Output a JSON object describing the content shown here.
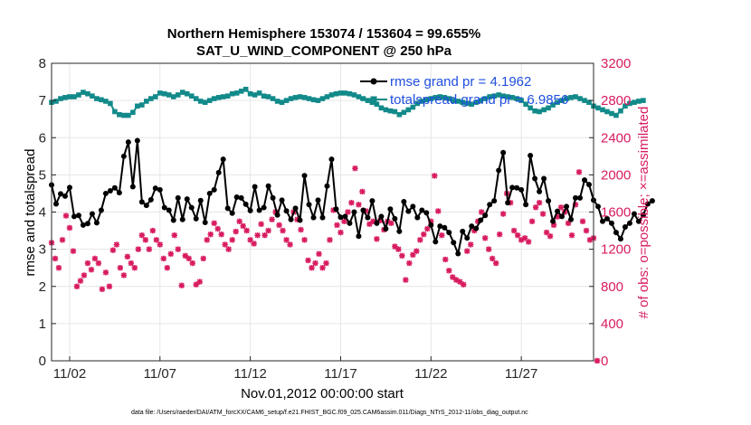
{
  "chart_data": {
    "type": "line",
    "title": "Northern Hemisphere 153074 / 153604 = 99.655%",
    "subtitle": "SAT_U_WIND_COMPONENT @ 250 hPa",
    "xlabel": "Nov.01,2012 00:00:00 start",
    "ylabel_left": "rmse and totalspread",
    "ylabel_right": "# of obs: o=possible; ×=assimilated",
    "footnote": "data file: /Users/raeder/DAI/ATM_forcXX/CAM6_setup/f.e21.FHIST_BGC.f09_025.CAM6assim.011/Diags_NTrS_2012-11/obs_diag_output.nc",
    "x_tick_labels": [
      "11/02",
      "11/07",
      "11/12",
      "11/17",
      "11/22",
      "11/27"
    ],
    "x_tick_days": [
      2,
      7,
      12,
      17,
      22,
      27
    ],
    "xlim_days": [
      1.0,
      31.0
    ],
    "y_left_ticks": [
      "0",
      "1",
      "2",
      "3",
      "4",
      "5",
      "6",
      "7",
      "8"
    ],
    "ylim_left": [
      0,
      8
    ],
    "y_right_ticks": [
      "0",
      "400",
      "800",
      "1200",
      "1600",
      "2000",
      "2400",
      "2800",
      "3200"
    ],
    "ylim_right": [
      0,
      3200
    ],
    "grid": true,
    "legend_placement": "top-right",
    "colors": {
      "rmse": "#000000",
      "totalspread": "#138a8a",
      "obs": "#d81b60",
      "right_axis": "#d81b60",
      "legend_text": "#1f4fdf"
    },
    "series": [
      {
        "name": "rmse grand pr = 4.1962",
        "axis": "left",
        "x_start_day": 1.0,
        "x_step_days": 0.25,
        "values": [
          4.73,
          4.22,
          4.49,
          4.43,
          4.66,
          3.88,
          3.91,
          3.65,
          3.69,
          3.95,
          3.71,
          4.05,
          4.5,
          4.57,
          4.65,
          4.52,
          5.5,
          5.88,
          4.68,
          5.92,
          4.27,
          4.18,
          4.33,
          4.64,
          4.6,
          4.12,
          4.05,
          3.78,
          4.38,
          3.8,
          4.35,
          4.12,
          3.82,
          4.31,
          3.72,
          4.5,
          4.6,
          5.06,
          5.42,
          4.1,
          3.97,
          4.4,
          4.38,
          4.21,
          4.04,
          4.68,
          4.05,
          4.12,
          4.7,
          4.38,
          3.92,
          4.32,
          4.03,
          3.8,
          4.1,
          3.78,
          4.98,
          4.2,
          3.85,
          4.32,
          3.85,
          4.7,
          5.42,
          4.08,
          3.86,
          3.88,
          3.7,
          4.0,
          3.35,
          4.05,
          3.85,
          4.3,
          3.7,
          3.88,
          3.55,
          4.08,
          3.82,
          3.48,
          4.28,
          4.02,
          4.15,
          3.85,
          4.05,
          3.98,
          3.65,
          3.2,
          3.62,
          3.58,
          3.45,
          3.18,
          2.88,
          3.48,
          3.3,
          3.62,
          3.56,
          3.78,
          3.91,
          4.2,
          4.3,
          5.12,
          5.6,
          4.25,
          4.66,
          4.65,
          4.6,
          4.2,
          5.52,
          4.9,
          4.55,
          4.9,
          4.3,
          3.75,
          4.02,
          3.88,
          4.15,
          3.8,
          4.38,
          4.38,
          4.86,
          4.74,
          4.32,
          4.15,
          3.75,
          3.82,
          3.7,
          3.45,
          3.28,
          3.6,
          3.7,
          3.95,
          3.75,
          3.92,
          4.22,
          4.3
        ]
      },
      {
        "name": "totalspread grand pr = 6.9856",
        "axis": "left",
        "x_start_day": 1.0,
        "x_step_days": 0.25,
        "values": [
          6.95,
          6.98,
          7.05,
          7.08,
          7.1,
          7.1,
          7.15,
          7.22,
          7.18,
          7.12,
          7.05,
          7.02,
          6.98,
          6.92,
          6.7,
          6.62,
          6.6,
          6.6,
          6.68,
          6.85,
          6.88,
          6.98,
          7.05,
          7.1,
          7.2,
          7.18,
          7.15,
          7.1,
          7.15,
          7.22,
          7.18,
          7.12,
          7.05,
          6.98,
          6.95,
          7.0,
          7.05,
          7.08,
          7.1,
          7.12,
          7.18,
          7.2,
          7.25,
          7.3,
          7.18,
          7.15,
          7.2,
          7.12,
          7.1,
          7.05,
          6.98,
          6.95,
          7.0,
          7.05,
          7.08,
          7.1,
          7.08,
          7.05,
          7.02,
          7.0,
          7.05,
          7.1,
          7.15,
          7.18,
          7.2,
          7.2,
          7.18,
          7.15,
          7.1,
          7.05,
          7.0,
          6.95,
          6.9,
          6.8,
          6.75,
          6.72,
          6.7,
          6.62,
          6.68,
          6.75,
          6.82,
          6.92,
          6.98,
          7.02,
          7.05,
          7.08,
          7.1,
          7.08,
          7.05,
          7.0,
          6.98,
          6.95,
          6.92,
          6.9,
          6.95,
          7.0,
          7.05,
          7.1,
          7.12,
          7.15,
          7.12,
          7.1,
          7.08,
          7.05,
          7.0,
          6.9,
          6.8,
          6.72,
          6.7,
          6.75,
          6.8,
          6.88,
          6.95,
          7.0,
          7.05,
          7.08,
          7.1,
          7.05,
          7.0,
          6.95,
          6.85,
          6.8,
          6.75,
          6.7,
          6.65,
          6.6,
          6.72,
          6.85,
          6.92,
          6.95,
          6.98,
          7.0
        ]
      },
      {
        "name": "obs assimilated",
        "axis": "right",
        "style": "markers",
        "points": [
          [
            1.0,
            1270
          ],
          [
            1.2,
            1100
          ],
          [
            1.4,
            1000
          ],
          [
            1.6,
            1300
          ],
          [
            1.8,
            1560
          ],
          [
            2.0,
            1430
          ],
          [
            2.2,
            1180
          ],
          [
            2.4,
            800
          ],
          [
            2.6,
            860
          ],
          [
            2.8,
            920
          ],
          [
            3.0,
            1050
          ],
          [
            3.2,
            980
          ],
          [
            3.4,
            1100
          ],
          [
            3.6,
            1050
          ],
          [
            3.8,
            770
          ],
          [
            4.0,
            950
          ],
          [
            4.2,
            800
          ],
          [
            4.4,
            1190
          ],
          [
            4.6,
            1250
          ],
          [
            4.8,
            1000
          ],
          [
            5.0,
            920
          ],
          [
            5.2,
            1120
          ],
          [
            5.4,
            1050
          ],
          [
            5.6,
            1000
          ],
          [
            5.8,
            1200
          ],
          [
            6.0,
            1350
          ],
          [
            6.2,
            1300
          ],
          [
            6.4,
            1200
          ],
          [
            6.6,
            1400
          ],
          [
            6.8,
            1300
          ],
          [
            7.0,
            1250
          ],
          [
            7.2,
            1100
          ],
          [
            7.4,
            1000
          ],
          [
            7.6,
            1150
          ],
          [
            7.8,
            1350
          ],
          [
            8.0,
            1200
          ],
          [
            8.2,
            810
          ],
          [
            8.4,
            1130
          ],
          [
            8.6,
            1100
          ],
          [
            8.8,
            1050
          ],
          [
            9.0,
            820
          ],
          [
            9.2,
            850
          ],
          [
            9.4,
            1100
          ],
          [
            9.6,
            1300
          ],
          [
            9.8,
            1360
          ],
          [
            10.0,
            1480
          ],
          [
            10.2,
            1420
          ],
          [
            10.4,
            1360
          ],
          [
            10.6,
            1250
          ],
          [
            10.8,
            1200
          ],
          [
            11.0,
            1300
          ],
          [
            11.2,
            1390
          ],
          [
            11.4,
            1500
          ],
          [
            11.6,
            1450
          ],
          [
            11.8,
            1400
          ],
          [
            12.0,
            1300
          ],
          [
            12.2,
            1260
          ],
          [
            12.4,
            1350
          ],
          [
            12.6,
            1470
          ],
          [
            12.8,
            1350
          ],
          [
            13.0,
            1400
          ],
          [
            13.2,
            1520
          ],
          [
            13.4,
            1600
          ],
          [
            13.6,
            1460
          ],
          [
            13.8,
            1400
          ],
          [
            14.0,
            1300
          ],
          [
            14.2,
            1250
          ],
          [
            14.4,
            1600
          ],
          [
            14.6,
            1520
          ],
          [
            14.8,
            1410
          ],
          [
            15.0,
            1300
          ],
          [
            15.2,
            1080
          ],
          [
            15.4,
            1000
          ],
          [
            15.6,
            1050
          ],
          [
            15.8,
            1150
          ],
          [
            16.0,
            1000
          ],
          [
            16.2,
            1050
          ],
          [
            16.4,
            1300
          ],
          [
            16.6,
            1620
          ],
          [
            16.8,
            1460
          ],
          [
            17.0,
            1380
          ],
          [
            17.2,
            1500
          ],
          [
            17.4,
            1600
          ],
          [
            17.6,
            1700
          ],
          [
            17.8,
            2070
          ],
          [
            18.0,
            1680
          ],
          [
            18.2,
            1820
          ],
          [
            18.4,
            1610
          ],
          [
            18.6,
            1470
          ],
          [
            18.8,
            1500
          ],
          [
            19.0,
            1310
          ],
          [
            19.2,
            1510
          ],
          [
            19.4,
            1410
          ],
          [
            19.6,
            1500
          ],
          [
            19.8,
            1480
          ],
          [
            20.0,
            1230
          ],
          [
            20.2,
            1200
          ],
          [
            20.4,
            1130
          ],
          [
            20.6,
            870
          ],
          [
            20.8,
            1050
          ],
          [
            21.0,
            1140
          ],
          [
            21.2,
            1180
          ],
          [
            21.4,
            1300
          ],
          [
            21.6,
            1360
          ],
          [
            21.8,
            1420
          ],
          [
            22.0,
            1500
          ],
          [
            22.2,
            1990
          ],
          [
            22.4,
            1610
          ],
          [
            22.6,
            1350
          ],
          [
            22.8,
            1090
          ],
          [
            23.0,
            970
          ],
          [
            23.2,
            900
          ],
          [
            23.4,
            870
          ],
          [
            23.6,
            850
          ],
          [
            23.8,
            820
          ],
          [
            24.0,
            1180
          ],
          [
            24.2,
            1250
          ],
          [
            24.4,
            1400
          ],
          [
            24.6,
            1500
          ],
          [
            24.8,
            1600
          ],
          [
            25.0,
            1320
          ],
          [
            25.2,
            1200
          ],
          [
            25.4,
            1100
          ],
          [
            25.6,
            1050
          ],
          [
            25.8,
            1360
          ],
          [
            26.0,
            1580
          ],
          [
            26.2,
            1800
          ],
          [
            26.4,
            1700
          ],
          [
            26.6,
            1400
          ],
          [
            26.8,
            1350
          ],
          [
            27.0,
            1300
          ],
          [
            27.2,
            1320
          ],
          [
            27.4,
            1280
          ],
          [
            27.6,
            1500
          ],
          [
            27.8,
            1650
          ],
          [
            28.0,
            1700
          ],
          [
            28.2,
            1580
          ],
          [
            28.4,
            1380
          ],
          [
            28.6,
            1340
          ],
          [
            28.8,
            1460
          ],
          [
            29.0,
            1550
          ],
          [
            29.2,
            1650
          ],
          [
            29.4,
            1600
          ],
          [
            29.6,
            1480
          ],
          [
            29.8,
            1350
          ],
          [
            30.0,
            1680
          ],
          [
            30.2,
            2030
          ],
          [
            30.4,
            1500
          ],
          [
            30.6,
            1400
          ],
          [
            30.8,
            1300
          ],
          [
            31.0,
            1320
          ],
          [
            31.2,
            0
          ]
        ]
      }
    ]
  }
}
